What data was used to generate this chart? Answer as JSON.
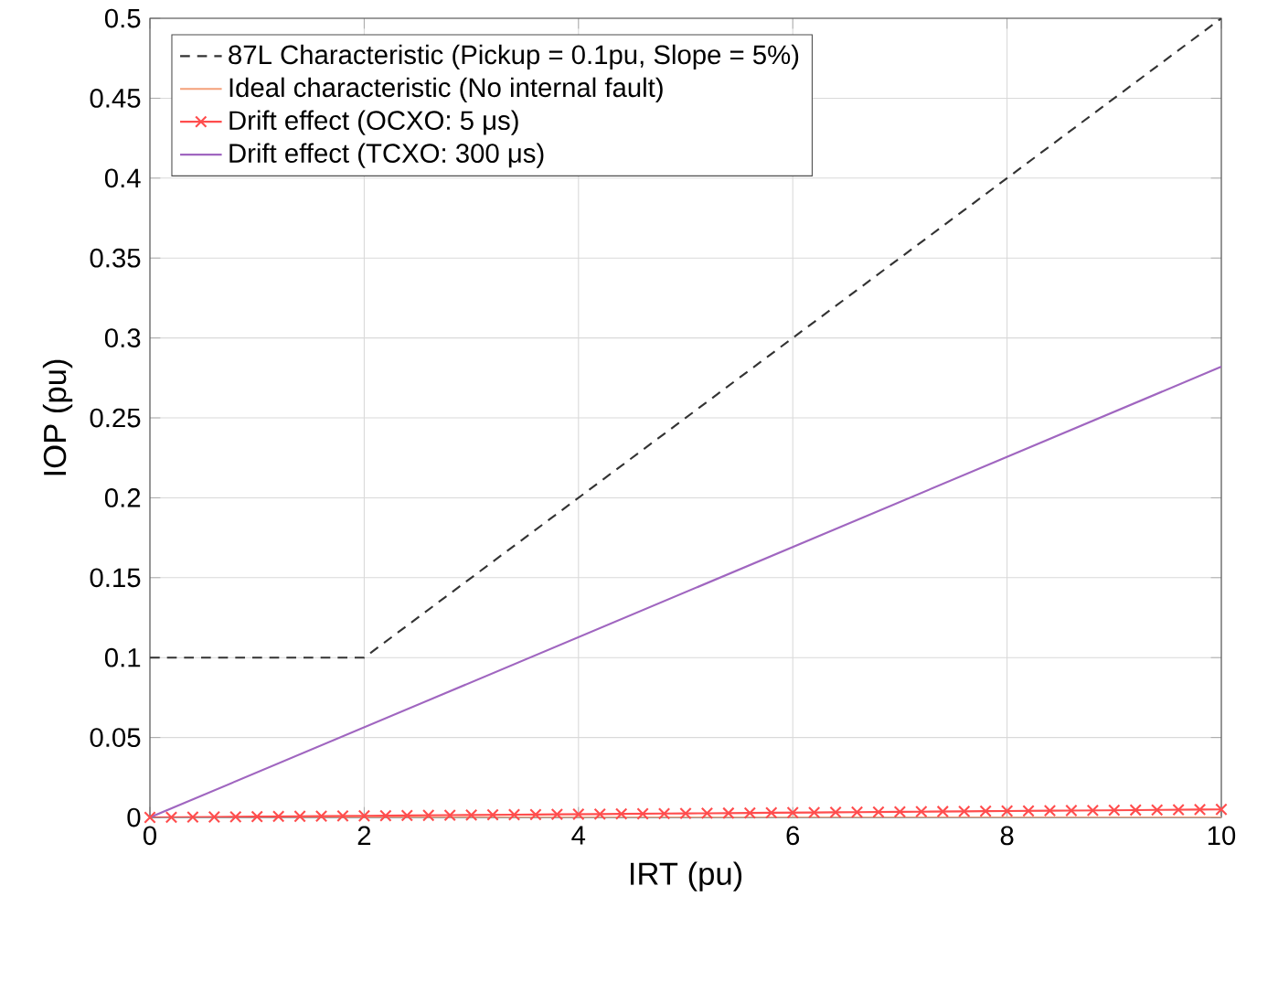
{
  "chart_data": {
    "type": "line",
    "xlabel": "IRT (pu)",
    "ylabel": "IOP (pu)",
    "xlim": [
      0,
      10
    ],
    "ylim": [
      0,
      0.5
    ],
    "xticks": [
      0,
      2,
      4,
      6,
      8,
      10
    ],
    "yticks": [
      0,
      0.05,
      0.1,
      0.15,
      0.2,
      0.25,
      0.3,
      0.35,
      0.4,
      0.45,
      0.5
    ],
    "grid": true,
    "legend": "top left",
    "series": [
      {
        "name": "87L Characteristic (Pickup = 0.1pu, Slope = 5%)",
        "color": "#333333",
        "line_style": "dashed",
        "marker": "none",
        "x": [
          0,
          2,
          10
        ],
        "values": [
          0.1,
          0.1,
          0.5
        ]
      },
      {
        "name": "Ideal characteristic (No internal fault)",
        "color": "#f4a07a",
        "line_style": "solid",
        "marker": "none",
        "x": [
          0,
          10
        ],
        "values": [
          0,
          0
        ]
      },
      {
        "name": "Drift effect (OCXO: 5 μs)",
        "color": "#ff4d4d",
        "line_style": "solid",
        "marker": "cross",
        "x": [
          0,
          0.2,
          0.4,
          0.6,
          0.8,
          1,
          1.2,
          1.4,
          1.6,
          1.8,
          2,
          2.2,
          2.4,
          2.6,
          2.8,
          3,
          3.2,
          3.4,
          3.6,
          3.8,
          4,
          4.2,
          4.4,
          4.6,
          4.8,
          5,
          5.2,
          5.4,
          5.6,
          5.8,
          6,
          6.2,
          6.4,
          6.6,
          6.8,
          7,
          7.2,
          7.4,
          7.6,
          7.8,
          8,
          8.2,
          8.4,
          8.6,
          8.8,
          9,
          9.2,
          9.4,
          9.6,
          9.8,
          10
        ],
        "values": [
          0,
          0.0001,
          0.0002,
          0.0003,
          0.0004,
          0.0005,
          0.0006,
          0.0007,
          0.0008,
          0.0009,
          0.001,
          0.0011,
          0.0012,
          0.0013,
          0.0014,
          0.0015,
          0.0016,
          0.0017,
          0.0018,
          0.0019,
          0.002,
          0.0021,
          0.0022,
          0.0023,
          0.0024,
          0.0025,
          0.0026,
          0.0027,
          0.0028,
          0.0029,
          0.003,
          0.0031,
          0.0032,
          0.0033,
          0.0034,
          0.0035,
          0.0036,
          0.0037,
          0.0038,
          0.0039,
          0.004,
          0.0041,
          0.0042,
          0.0043,
          0.0044,
          0.0045,
          0.0046,
          0.0047,
          0.0048,
          0.0049,
          0.005
        ]
      },
      {
        "name": "Drift effect (TCXO: 300 μs)",
        "color": "#a066c0",
        "line_style": "solid",
        "marker": "none",
        "x": [
          0,
          10
        ],
        "values": [
          0,
          0.282
        ]
      }
    ]
  }
}
